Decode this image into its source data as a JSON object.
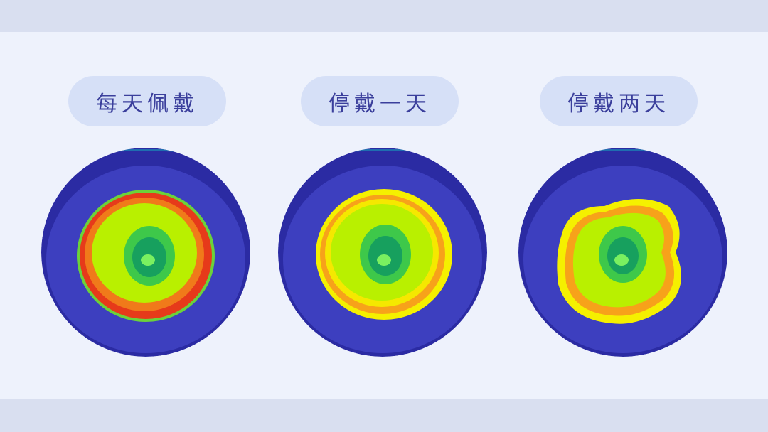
{
  "panels": [
    {
      "label": "每天佩戴"
    },
    {
      "label": "停戴一天"
    },
    {
      "label": "停戴两天"
    }
  ]
}
